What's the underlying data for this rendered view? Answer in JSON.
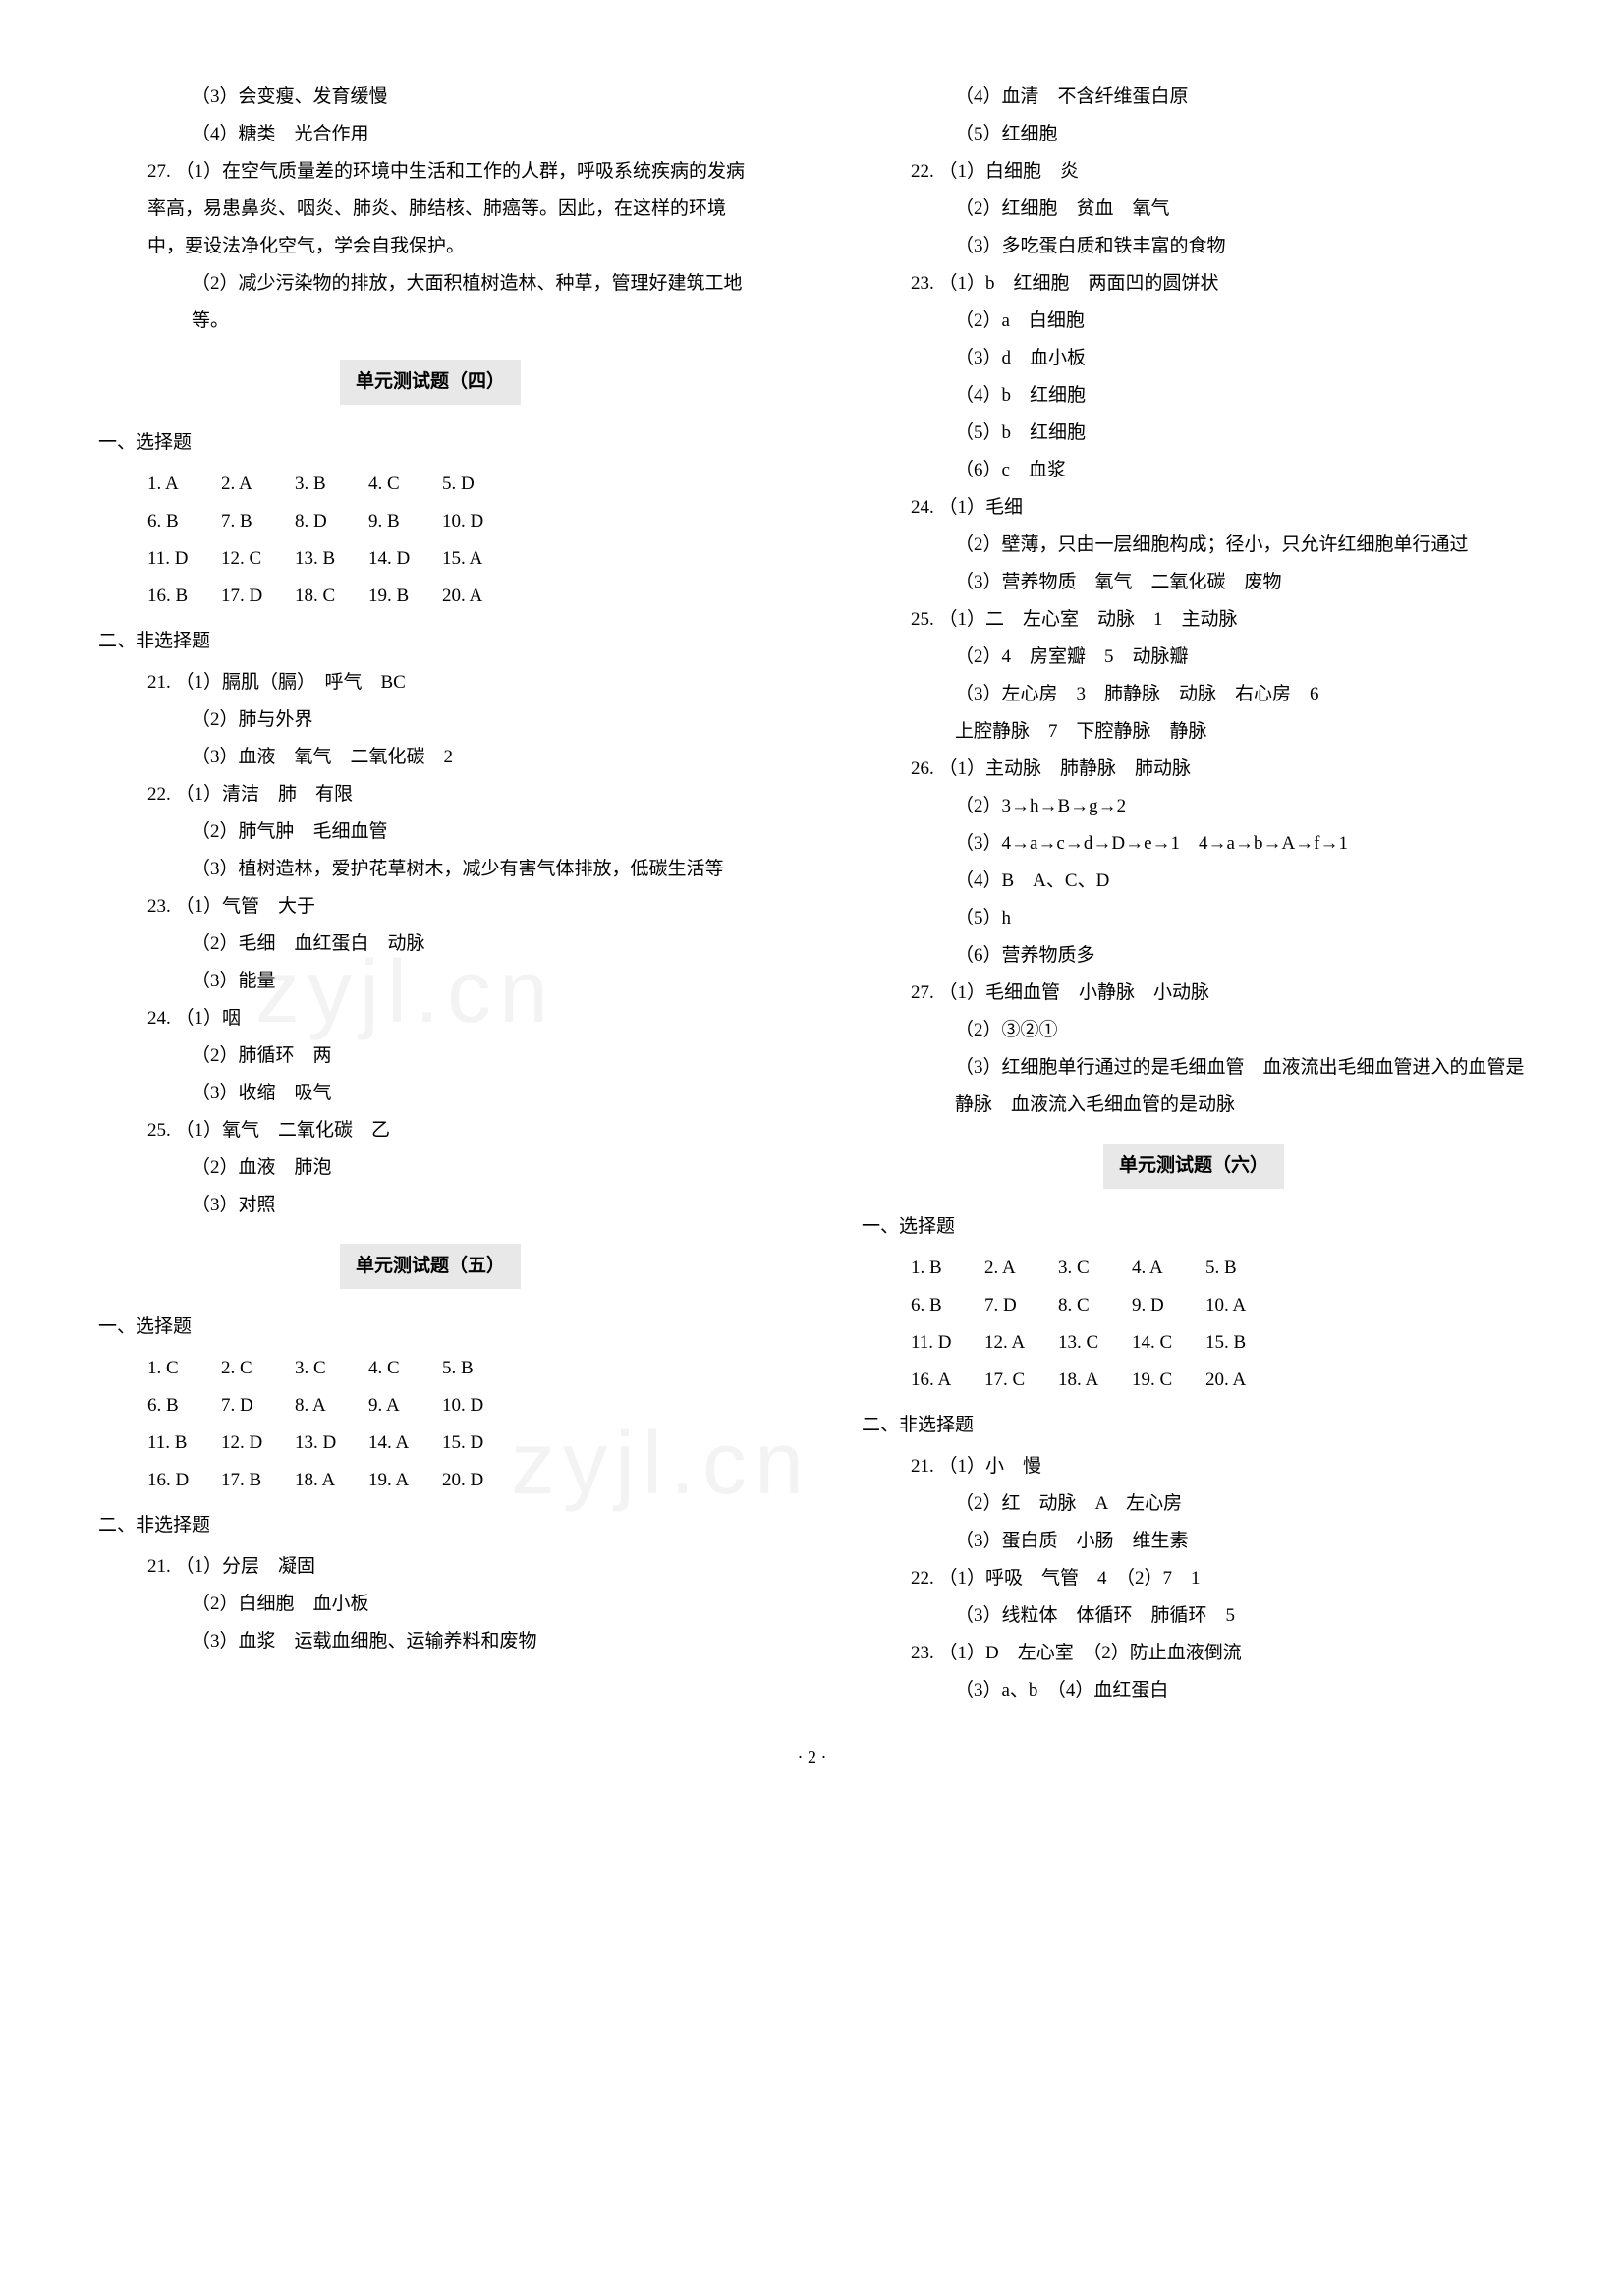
{
  "page_number": "· 2 ·",
  "watermark_text": "zyjl.cn",
  "left_column": {
    "pre_lines": [
      "（3）会变瘦、发育缓慢",
      "（4）糖类　光合作用"
    ],
    "q27": {
      "num": "27.",
      "parts": [
        "（1）在空气质量差的环境中生活和工作的人群，呼吸系统疾病的发病率高，易患鼻炎、咽炎、肺炎、肺结核、肺癌等。因此，在这样的环境中，要设法净化空气，学会自我保护。",
        "（2）减少污染物的排放，大面积植树造林、种草，管理好建筑工地等。"
      ]
    },
    "unit4": {
      "title": "单元测试题（四）",
      "mc_heading": "一、选择题",
      "mc_rows": [
        [
          [
            "1.",
            "A"
          ],
          [
            "2.",
            "A"
          ],
          [
            "3.",
            "B"
          ],
          [
            "4.",
            "C"
          ],
          [
            "5.",
            "D"
          ]
        ],
        [
          [
            "6.",
            "B"
          ],
          [
            "7.",
            "B"
          ],
          [
            "8.",
            "D"
          ],
          [
            "9.",
            "B"
          ],
          [
            "10.",
            "D"
          ]
        ],
        [
          [
            "11.",
            "D"
          ],
          [
            "12.",
            "C"
          ],
          [
            "13.",
            "B"
          ],
          [
            "14.",
            "D"
          ],
          [
            "15.",
            "A"
          ]
        ],
        [
          [
            "16.",
            "B"
          ],
          [
            "17.",
            "D"
          ],
          [
            "18.",
            "C"
          ],
          [
            "19.",
            "B"
          ],
          [
            "20.",
            "A"
          ]
        ]
      ],
      "nmc_heading": "二、非选择题",
      "questions": [
        {
          "num": "21.",
          "lines": [
            "（1）膈肌（膈）　呼气　BC",
            "（2）肺与外界",
            "（3）血液　氧气　二氧化碳　2"
          ]
        },
        {
          "num": "22.",
          "lines": [
            "（1）清洁　肺　有限",
            "（2）肺气肿　毛细血管",
            "（3）植树造林，爱护花草树木，减少有害气体排放，低碳生活等"
          ]
        },
        {
          "num": "23.",
          "lines": [
            "（1）气管　大于",
            "（2）毛细　血红蛋白　动脉",
            "（3）能量"
          ]
        },
        {
          "num": "24.",
          "lines": [
            "（1）咽",
            "（2）肺循环　两",
            "（3）收缩　吸气"
          ]
        },
        {
          "num": "25.",
          "lines": [
            "（1）氧气　二氧化碳　乙",
            "（2）血液　肺泡",
            "（3）对照"
          ]
        }
      ]
    },
    "unit5": {
      "title": "单元测试题（五）",
      "mc_heading": "一、选择题",
      "mc_rows": [
        [
          [
            "1.",
            "C"
          ],
          [
            "2.",
            "C"
          ],
          [
            "3.",
            "C"
          ],
          [
            "4.",
            "C"
          ],
          [
            "5.",
            "B"
          ]
        ],
        [
          [
            "6.",
            "B"
          ],
          [
            "7.",
            "D"
          ],
          [
            "8.",
            "A"
          ],
          [
            "9.",
            "A"
          ],
          [
            "10.",
            "D"
          ]
        ],
        [
          [
            "11.",
            "B"
          ],
          [
            "12.",
            "D"
          ],
          [
            "13.",
            "D"
          ],
          [
            "14.",
            "A"
          ],
          [
            "15.",
            "D"
          ]
        ],
        [
          [
            "16.",
            "D"
          ],
          [
            "17.",
            "B"
          ],
          [
            "18.",
            "A"
          ],
          [
            "19.",
            "A"
          ],
          [
            "20.",
            "D"
          ]
        ]
      ],
      "nmc_heading": "二、非选择题",
      "questions": [
        {
          "num": "21.",
          "lines": [
            "（1）分层　凝固",
            "（2）白细胞　血小板",
            "（3）血浆　运载血细胞、运输养料和废物"
          ]
        }
      ]
    }
  },
  "right_column": {
    "pre_lines": [
      "（4）血清　不含纤维蛋白原",
      "（5）红细胞"
    ],
    "questions_a": [
      {
        "num": "22.",
        "lines": [
          "（1）白细胞　炎",
          "（2）红细胞　贫血　氧气",
          "（3）多吃蛋白质和铁丰富的食物"
        ]
      },
      {
        "num": "23.",
        "lines": [
          "（1）b　红细胞　两面凹的圆饼状",
          "（2）a　白细胞",
          "（3）d　血小板",
          "（4）b　红细胞",
          "（5）b　红细胞",
          "（6）c　血浆"
        ]
      },
      {
        "num": "24.",
        "lines": [
          "（1）毛细",
          "（2）壁薄，只由一层细胞构成；径小，只允许红细胞单行通过",
          "（3）营养物质　氧气　二氧化碳　废物"
        ]
      },
      {
        "num": "25.",
        "lines": [
          "（1）二　左心室　动脉　1　主动脉",
          "（2）4　房室瓣　5　动脉瓣",
          "（3）左心房　3　肺静脉　动脉　右心房　6",
          "上腔静脉　7　下腔静脉　静脉"
        ]
      },
      {
        "num": "26.",
        "lines": [
          "（1）主动脉　肺静脉　肺动脉",
          "（2）3→h→B→g→2",
          "（3）4→a→c→d→D→e→1　4→a→b→A→f→1",
          "（4）B　A、C、D",
          "（5）h",
          "（6）营养物质多"
        ]
      },
      {
        "num": "27.",
        "lines": [
          "（1）毛细血管　小静脉　小动脉",
          "（2）③②①",
          "（3）红细胞单行通过的是毛细血管　血液流出毛细血管进入的血管是静脉　血液流入毛细血管的是动脉"
        ]
      }
    ],
    "unit6": {
      "title": "单元测试题（六）",
      "mc_heading": "一、选择题",
      "mc_rows": [
        [
          [
            "1.",
            "B"
          ],
          [
            "2.",
            "A"
          ],
          [
            "3.",
            "C"
          ],
          [
            "4.",
            "A"
          ],
          [
            "5.",
            "B"
          ]
        ],
        [
          [
            "6.",
            "B"
          ],
          [
            "7.",
            "D"
          ],
          [
            "8.",
            "C"
          ],
          [
            "9.",
            "D"
          ],
          [
            "10.",
            "A"
          ]
        ],
        [
          [
            "11.",
            "D"
          ],
          [
            "12.",
            "A"
          ],
          [
            "13.",
            "C"
          ],
          [
            "14.",
            "C"
          ],
          [
            "15.",
            "B"
          ]
        ],
        [
          [
            "16.",
            "A"
          ],
          [
            "17.",
            "C"
          ],
          [
            "18.",
            "A"
          ],
          [
            "19.",
            "C"
          ],
          [
            "20.",
            "A"
          ]
        ]
      ],
      "nmc_heading": "二、非选择题",
      "questions": [
        {
          "num": "21.",
          "lines": [
            "（1）小　慢",
            "（2）红　动脉　A　左心房",
            "（3）蛋白质　小肠　维生素"
          ]
        },
        {
          "num": "22.",
          "lines": [
            "（1）呼吸　气管　4　（2）7　1",
            "（3）线粒体　体循环　肺循环　5"
          ]
        },
        {
          "num": "23.",
          "lines": [
            "（1）D　左心室　（2）防止血液倒流",
            "（3）a、b　（4）血红蛋白"
          ]
        }
      ]
    }
  }
}
